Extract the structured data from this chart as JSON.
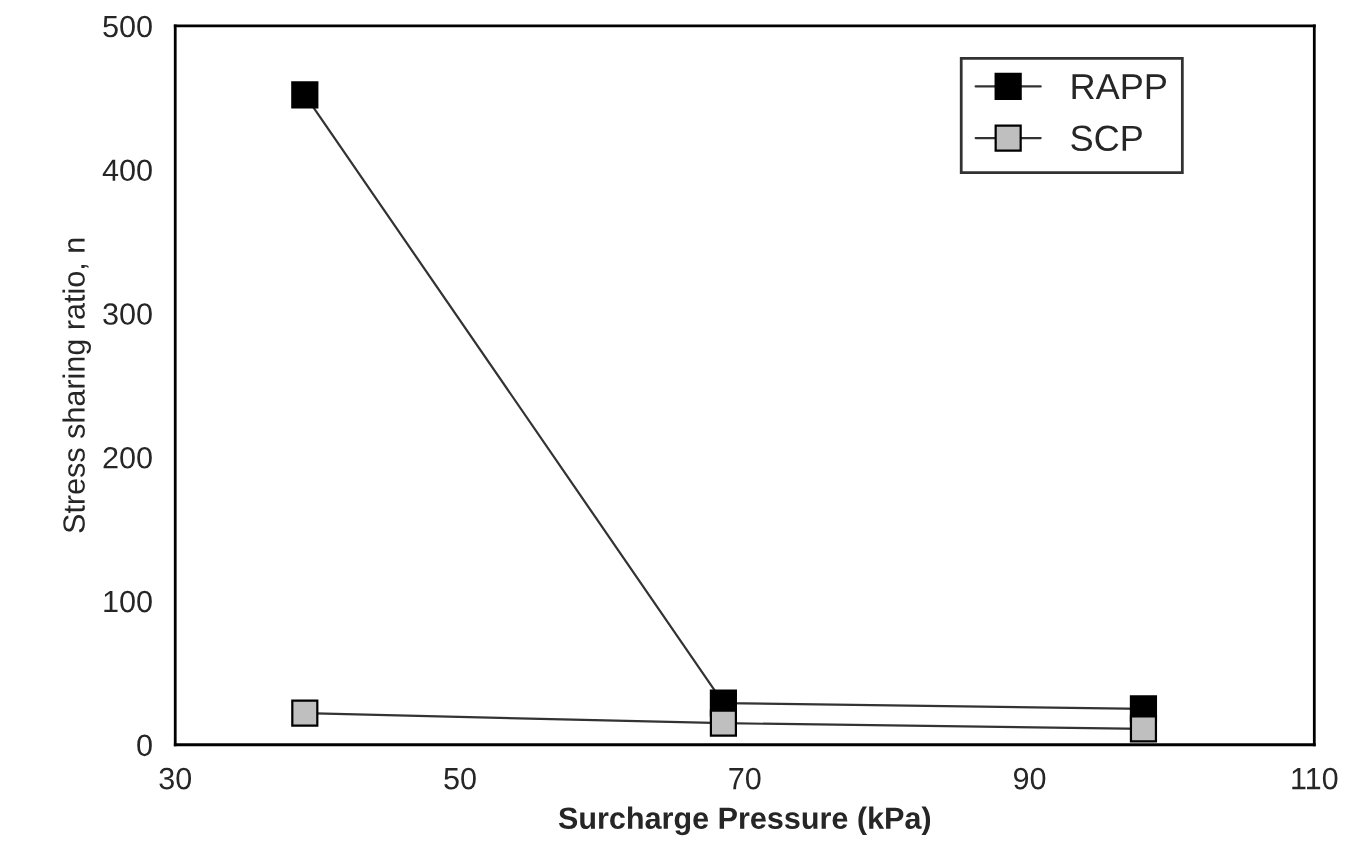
{
  "chart_data": {
    "type": "line",
    "xlabel": "Surcharge Pressure (kPa)",
    "ylabel": "Stress sharing ratio, n",
    "x": [
      39.1,
      68.5,
      98.0
    ],
    "series": [
      {
        "name": "RAPP",
        "color": "#000000",
        "values": [
          452,
          29,
          25
        ]
      },
      {
        "name": "SCP",
        "color": "#bfbfbf",
        "values": [
          22,
          15,
          11
        ]
      }
    ],
    "xlim": [
      30,
      110
    ],
    "xticks": [
      30,
      50,
      70,
      90,
      110
    ],
    "ylim": [
      0,
      500
    ],
    "yticks": [
      0,
      100,
      200,
      300,
      400,
      500
    ],
    "grid": false,
    "legend": "top right",
    "marker": "square",
    "line_style": "solid"
  }
}
